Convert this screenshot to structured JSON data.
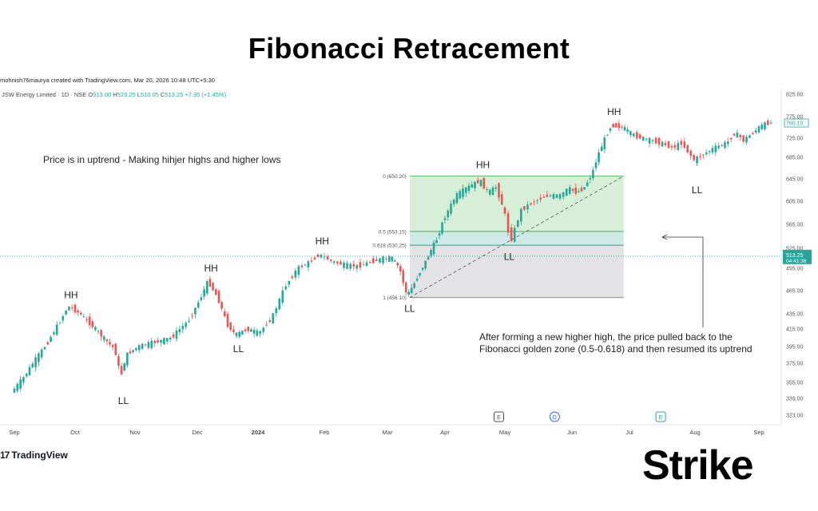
{
  "title": "Fibonacci Retracement",
  "credit": "mohnish76maurya created with TradingView.com, Mar 20, 2026 10:48 UTC+5:30",
  "brand": {
    "tradingview": "TradingView",
    "tradingview_mark": "17",
    "strike": "Strike"
  },
  "colors": {
    "up": "#26a69a",
    "down": "#ef5350",
    "fib_upper": "#d6efd6",
    "fib_lower": "#e3e3e5",
    "fib_mid": "#cfe9e6",
    "level_line": "#4caf50"
  },
  "chart_data": {
    "type": "candlestick",
    "symbol_line": {
      "name": "JSW Energy Limited · 1D · NSE",
      "o_label": "O",
      "o": "513.00",
      "h_label": "H",
      "h": "523.25",
      "l_label": "L",
      "l": "510.05",
      "c_label": "C",
      "c": "513.25",
      "change": "+7.35 (+1.45%)"
    },
    "y_ticks": [
      "825.00",
      "775.00",
      "725.00",
      "685.00",
      "645.00",
      "605.00",
      "565.00",
      "525.00",
      "495.00",
      "465.00",
      "435.00",
      "415.00",
      "395.00",
      "375.00",
      "355.00",
      "339.00",
      "323.00"
    ],
    "y_tick_values": [
      825,
      775,
      725,
      685,
      645,
      605,
      565,
      525,
      495,
      465,
      435,
      415,
      395,
      375,
      355,
      339,
      323
    ],
    "x_ticks": [
      "Sep",
      "Oct",
      "Nov",
      "Dec",
      "2024",
      "Feb",
      "Mar",
      "Apr",
      "May",
      "Jun",
      "Jul",
      "Aug",
      "Sep"
    ],
    "x_tick_days": [
      0,
      30,
      61,
      91,
      122,
      153,
      182,
      213,
      243,
      274,
      304,
      335,
      366
    ],
    "price_labels": {
      "last": "760.10",
      "current": "513.25",
      "countdown": "04:41:38"
    },
    "price_values": {
      "last": 760.1,
      "current": 513.25
    },
    "fib_levels": [
      {
        "label": "0 (650.20)",
        "value": 650.2
      },
      {
        "label": "0.5 (553.15)",
        "value": 553.15
      },
      {
        "label": "0.618 (530.25)",
        "value": 530.25
      },
      {
        "label": "1 (456.10)",
        "value": 456.1
      }
    ],
    "fib_range_days": [
      194,
      296
    ],
    "pivots": [
      {
        "label": "HH",
        "day": 28,
        "value": 445,
        "pos": "above"
      },
      {
        "label": "LL",
        "day": 55,
        "value": 348,
        "pos": "below"
      },
      {
        "label": "HH",
        "day": 98,
        "value": 480,
        "pos": "above"
      },
      {
        "label": "LL",
        "day": 112,
        "value": 405,
        "pos": "below"
      },
      {
        "label": "HH",
        "day": 152,
        "value": 519,
        "pos": "above"
      },
      {
        "label": "HH",
        "day": 232,
        "value": 650,
        "pos": "above"
      },
      {
        "label": "LL",
        "day": 245,
        "value": 530,
        "pos": "below"
      },
      {
        "label": "HH",
        "day": 296,
        "value": 760,
        "pos": "above"
      },
      {
        "label": "LL",
        "day": 336,
        "value": 645,
        "pos": "below"
      },
      {
        "label": "LL",
        "day": 194,
        "value": 456,
        "pos": "below"
      }
    ],
    "annotations": [
      "Price is in uptrend - Making hihjer highs and higher lows",
      "After forming a new higher high, the price pulled back to the",
      "Fibonacci golden zone (0.5-0.618) and then resumed its uptrend"
    ],
    "event_markers": [
      {
        "label": "E",
        "day": 240
      },
      {
        "label": "D",
        "day": 266
      },
      {
        "label": "E",
        "day": 315
      }
    ],
    "price_path": [
      [
        0,
        345
      ],
      [
        6,
        360
      ],
      [
        12,
        380
      ],
      [
        18,
        400
      ],
      [
        24,
        425
      ],
      [
        28,
        445
      ],
      [
        34,
        435
      ],
      [
        40,
        420
      ],
      [
        46,
        405
      ],
      [
        52,
        392
      ],
      [
        55,
        360
      ],
      [
        58,
        385
      ],
      [
        64,
        395
      ],
      [
        72,
        400
      ],
      [
        80,
        405
      ],
      [
        88,
        425
      ],
      [
        94,
        455
      ],
      [
        98,
        478
      ],
      [
        103,
        455
      ],
      [
        108,
        420
      ],
      [
        112,
        408
      ],
      [
        118,
        415
      ],
      [
        124,
        410
      ],
      [
        130,
        430
      ],
      [
        136,
        470
      ],
      [
        142,
        495
      ],
      [
        148,
        505
      ],
      [
        152,
        516
      ],
      [
        158,
        505
      ],
      [
        164,
        500
      ],
      [
        170,
        498
      ],
      [
        176,
        505
      ],
      [
        182,
        510
      ],
      [
        186,
        510
      ],
      [
        190,
        495
      ],
      [
        194,
        458
      ],
      [
        198,
        475
      ],
      [
        204,
        505
      ],
      [
        210,
        540
      ],
      [
        214,
        575
      ],
      [
        220,
        615
      ],
      [
        226,
        630
      ],
      [
        232,
        642
      ],
      [
        236,
        620
      ],
      [
        240,
        630
      ],
      [
        244,
        590
      ],
      [
        247,
        535
      ],
      [
        252,
        590
      ],
      [
        258,
        605
      ],
      [
        264,
        615
      ],
      [
        270,
        615
      ],
      [
        274,
        628
      ],
      [
        278,
        620
      ],
      [
        282,
        630
      ],
      [
        286,
        655
      ],
      [
        290,
        700
      ],
      [
        296,
        755
      ],
      [
        302,
        750
      ],
      [
        308,
        730
      ],
      [
        314,
        722
      ],
      [
        320,
        715
      ],
      [
        326,
        705
      ],
      [
        330,
        715
      ],
      [
        336,
        680
      ],
      [
        340,
        690
      ],
      [
        346,
        705
      ],
      [
        352,
        715
      ],
      [
        356,
        738
      ],
      [
        360,
        720
      ],
      [
        364,
        735
      ],
      [
        368,
        752
      ],
      [
        372,
        760
      ]
    ]
  }
}
